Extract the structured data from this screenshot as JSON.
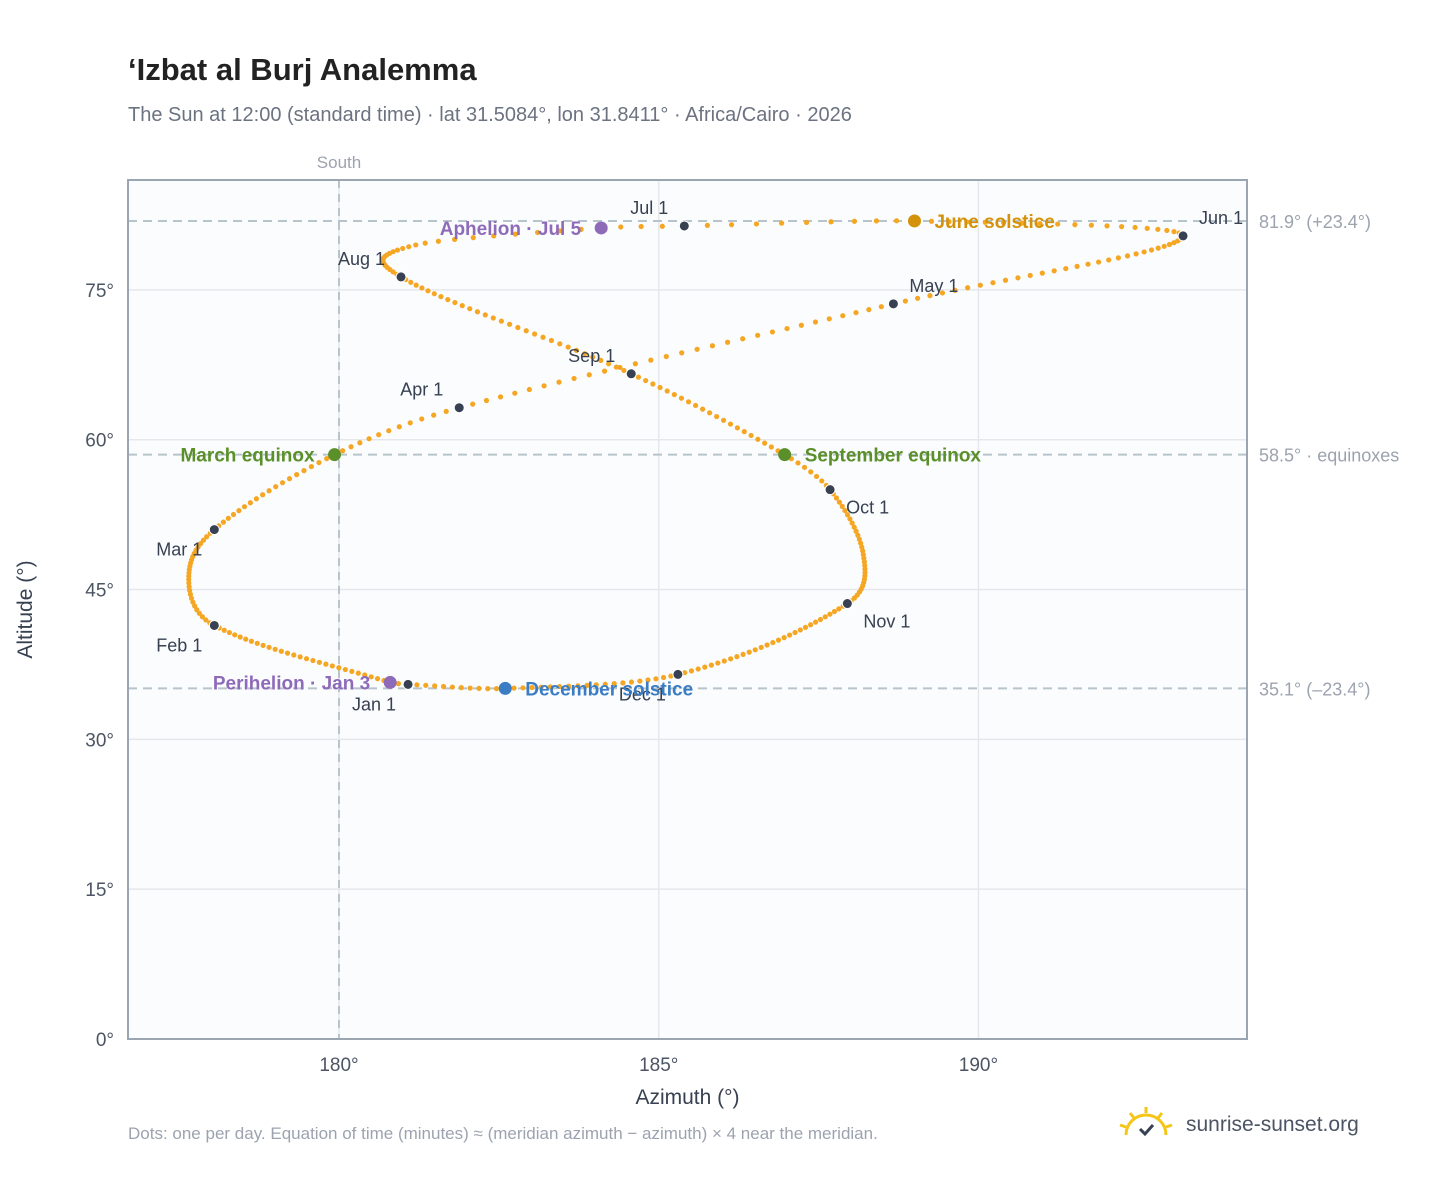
{
  "title": "‘Izbat al Burj Analemma",
  "subtitle": "The Sun at 12:00 (standard time) · lat 31.5084°, lon 31.8411° · Africa/Cairo · 2026",
  "footnote": "Dots: one per day. Equation of time (minutes) ≈ (meridian azimuth − azimuth) × 4 near the meridian.",
  "brand": {
    "text": "sunrise-sunset.org",
    "icon": "sun-logo-icon"
  },
  "colors": {
    "path": "#f5a623",
    "month_marker": "#374151",
    "equinox": "#5a8f29",
    "june_solstice": "#d4920a",
    "december_solstice": "#3b7dc4",
    "apsis": "#8e6bb8",
    "grid": "#e5e7eb",
    "reference_line": "#b8c4cc",
    "plot_bg": "#fafcfe",
    "frame": "#9aa5b1"
  },
  "chart_data": {
    "type": "scatter",
    "xlabel": "Azimuth (°)",
    "ylabel": "Altitude (°)",
    "xlim": [
      176.7,
      194.2
    ],
    "ylim": [
      0,
      86
    ],
    "x_ticks": [
      180,
      185,
      190
    ],
    "x_tick_labels": [
      "180°",
      "185°",
      "190°"
    ],
    "y_ticks": [
      0,
      15,
      30,
      45,
      60,
      75
    ],
    "y_tick_labels": [
      "0°",
      "15°",
      "30°",
      "45°",
      "60°",
      "75°"
    ],
    "grid": true,
    "meridian": {
      "azimuth": 180,
      "label": "South"
    },
    "reference_lines": [
      {
        "altitude": 81.9,
        "label": "81.9° (+23.4°)"
      },
      {
        "altitude": 58.5,
        "label": "58.5° · equinoxes"
      },
      {
        "altitude": 35.1,
        "label": "35.1° (–23.4°)"
      }
    ],
    "path_control_points": [
      {
        "day": 1,
        "az": 181.08,
        "alt": 35.5
      },
      {
        "day": 3,
        "az": 180.8,
        "alt": 35.7
      },
      {
        "day": 32,
        "az": 178.05,
        "alt": 41.4
      },
      {
        "day": 45,
        "az": 177.65,
        "alt": 46.0
      },
      {
        "day": 60,
        "az": 178.05,
        "alt": 51.0
      },
      {
        "day": 79,
        "az": 179.93,
        "alt": 58.5
      },
      {
        "day": 91,
        "az": 181.88,
        "alt": 63.2
      },
      {
        "day": 121,
        "az": 188.67,
        "alt": 73.6
      },
      {
        "day": 152,
        "az": 193.2,
        "alt": 80.4
      },
      {
        "day": 172,
        "az": 189.0,
        "alt": 81.9
      },
      {
        "day": 182,
        "az": 185.4,
        "alt": 81.4
      },
      {
        "day": 186,
        "az": 184.1,
        "alt": 81.2
      },
      {
        "day": 196,
        "az": 181.2,
        "alt": 79.5
      },
      {
        "day": 213,
        "az": 180.97,
        "alt": 76.3
      },
      {
        "day": 244,
        "az": 184.57,
        "alt": 66.6
      },
      {
        "day": 266,
        "az": 186.97,
        "alt": 58.5
      },
      {
        "day": 274,
        "az": 187.68,
        "alt": 55.0
      },
      {
        "day": 290,
        "az": 188.2,
        "alt": 48.5
      },
      {
        "day": 305,
        "az": 187.95,
        "alt": 43.6
      },
      {
        "day": 335,
        "az": 185.3,
        "alt": 36.5
      },
      {
        "day": 355,
        "az": 182.6,
        "alt": 35.1
      },
      {
        "day": 366,
        "az": 181.08,
        "alt": 35.5
      }
    ],
    "month_markers": [
      {
        "label": "Jan 1",
        "az": 181.08,
        "alt": 35.5,
        "anchor": "below-left"
      },
      {
        "label": "Feb 1",
        "az": 178.05,
        "alt": 41.4,
        "anchor": "below-left"
      },
      {
        "label": "Mar 1",
        "az": 178.05,
        "alt": 51.0,
        "anchor": "below-left"
      },
      {
        "label": "Apr 1",
        "az": 181.88,
        "alt": 63.2,
        "anchor": "above-left"
      },
      {
        "label": "May 1",
        "az": 188.67,
        "alt": 73.6,
        "anchor": "above-right"
      },
      {
        "label": "Jun 1",
        "az": 193.2,
        "alt": 80.4,
        "anchor": "above-right"
      },
      {
        "label": "Jul 1",
        "az": 185.4,
        "alt": 81.4,
        "anchor": "above-left"
      },
      {
        "label": "Aug 1",
        "az": 180.97,
        "alt": 76.3,
        "anchor": "above-left"
      },
      {
        "label": "Sep 1",
        "az": 184.57,
        "alt": 66.6,
        "anchor": "above-left"
      },
      {
        "label": "Oct 1",
        "az": 187.68,
        "alt": 55.0,
        "anchor": "below-right"
      },
      {
        "label": "Nov 1",
        "az": 187.95,
        "alt": 43.6,
        "anchor": "below-right"
      },
      {
        "label": "Dec 1",
        "az": 185.3,
        "alt": 36.5,
        "anchor": "below-left"
      }
    ],
    "events": [
      {
        "label": "March equinox",
        "az": 179.93,
        "alt": 58.5,
        "color_key": "equinox",
        "anchor": "left"
      },
      {
        "label": "September equinox",
        "az": 186.97,
        "alt": 58.5,
        "color_key": "equinox",
        "anchor": "right"
      },
      {
        "label": "June solstice",
        "az": 189.0,
        "alt": 81.9,
        "color_key": "june_solstice",
        "anchor": "right"
      },
      {
        "label": "December solstice",
        "az": 182.6,
        "alt": 35.1,
        "color_key": "december_solstice",
        "anchor": "right"
      },
      {
        "label": "Perihelion · Jan 3",
        "az": 180.8,
        "alt": 35.7,
        "color_key": "apsis",
        "anchor": "left"
      },
      {
        "label": "Aphelion · Jul 5",
        "az": 184.1,
        "alt": 81.2,
        "color_key": "apsis",
        "anchor": "left"
      }
    ]
  }
}
